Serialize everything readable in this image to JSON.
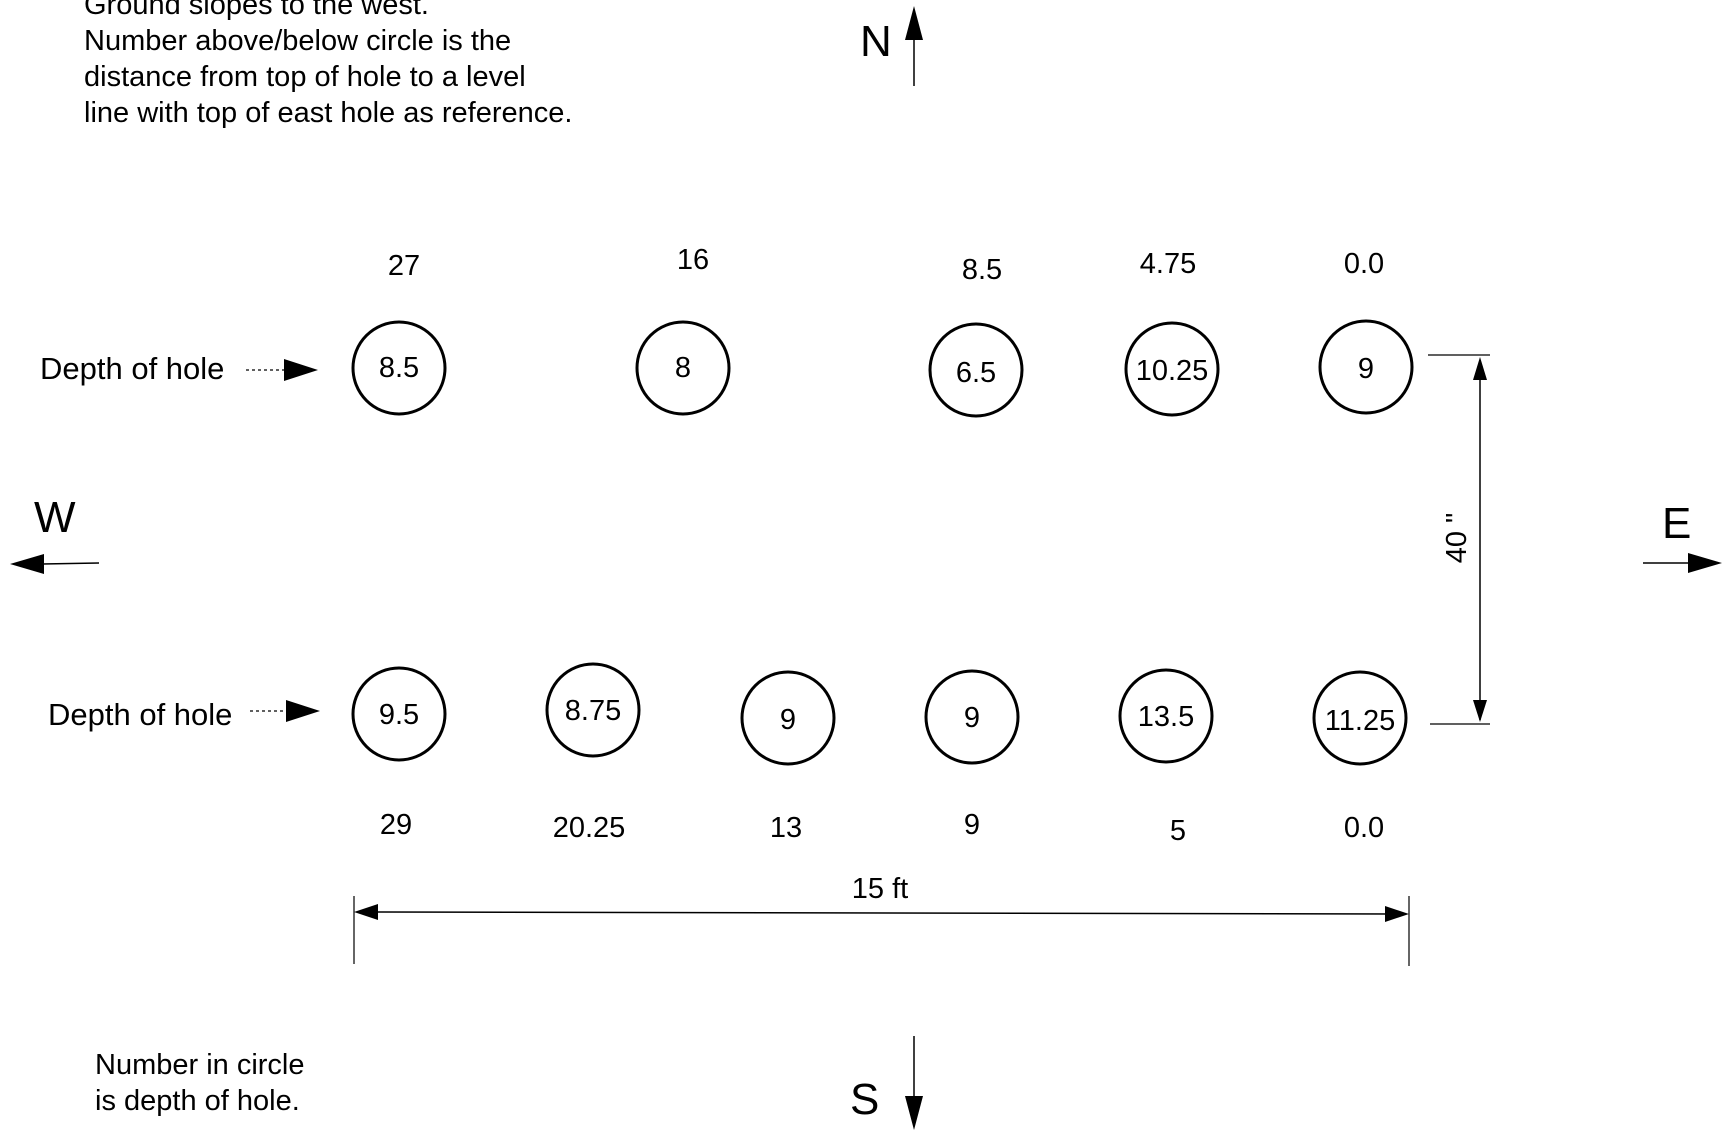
{
  "notes": {
    "top": [
      "Ground slopes to the west.",
      "Number above/below circle is the",
      "distance from top of hole to a level",
      "line with top of east hole as reference."
    ],
    "bottom": [
      "Number in circle",
      "is depth of hole."
    ]
  },
  "compass": {
    "north": "N",
    "south": "S",
    "west": "W",
    "east": "E"
  },
  "labels": {
    "depth_of_hole_north": "Depth of hole",
    "depth_of_hole_south": "Depth of hole"
  },
  "dimensions": {
    "width_label": "15 ft",
    "row_spacing_label": "40 \""
  },
  "north_row": [
    {
      "depth": "8.5",
      "level": "27"
    },
    {
      "depth": "8",
      "level": "16"
    },
    {
      "depth": "6.5",
      "level": "8.5"
    },
    {
      "depth": "10.25",
      "level": "4.75"
    },
    {
      "depth": "9",
      "level": "0.0"
    }
  ],
  "south_row": [
    {
      "depth": "9.5",
      "level": "29"
    },
    {
      "depth": "8.75",
      "level": "20.25"
    },
    {
      "depth": "9",
      "level": "13"
    },
    {
      "depth": "9",
      "level": "9"
    },
    {
      "depth": "13.5",
      "level": "5"
    },
    {
      "depth": "11.25",
      "level": "0.0"
    }
  ]
}
